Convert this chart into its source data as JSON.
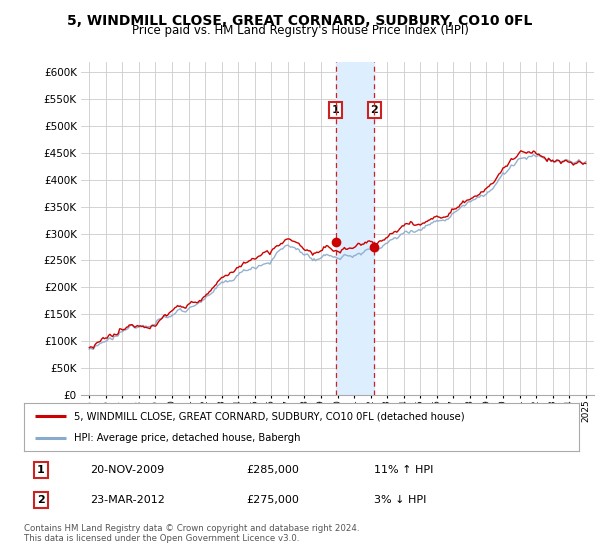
{
  "title": "5, WINDMILL CLOSE, GREAT CORNARD, SUDBURY, CO10 0FL",
  "subtitle": "Price paid vs. HM Land Registry's House Price Index (HPI)",
  "legend_line1": "5, WINDMILL CLOSE, GREAT CORNARD, SUDBURY, CO10 0FL (detached house)",
  "legend_line2": "HPI: Average price, detached house, Babergh",
  "sale1_date": "20-NOV-2009",
  "sale1_price": 285000,
  "sale1_label": "11% ↑ HPI",
  "sale2_date": "23-MAR-2012",
  "sale2_price": 275000,
  "sale2_label": "3% ↓ HPI",
  "sale1_x": 2009.88,
  "sale2_x": 2012.22,
  "footnote": "Contains HM Land Registry data © Crown copyright and database right 2024.\nThis data is licensed under the Open Government Licence v3.0.",
  "ylim": [
    0,
    620000
  ],
  "xlim": [
    1994.5,
    2025.5
  ],
  "red_color": "#cc0000",
  "blue_line_color": "#88aacc",
  "vline_color": "#cc2222",
  "highlight_color": "#ddeeff",
  "background_color": "#ffffff",
  "grid_color": "#cccccc",
  "title_fontsize": 10,
  "subtitle_fontsize": 8.5
}
